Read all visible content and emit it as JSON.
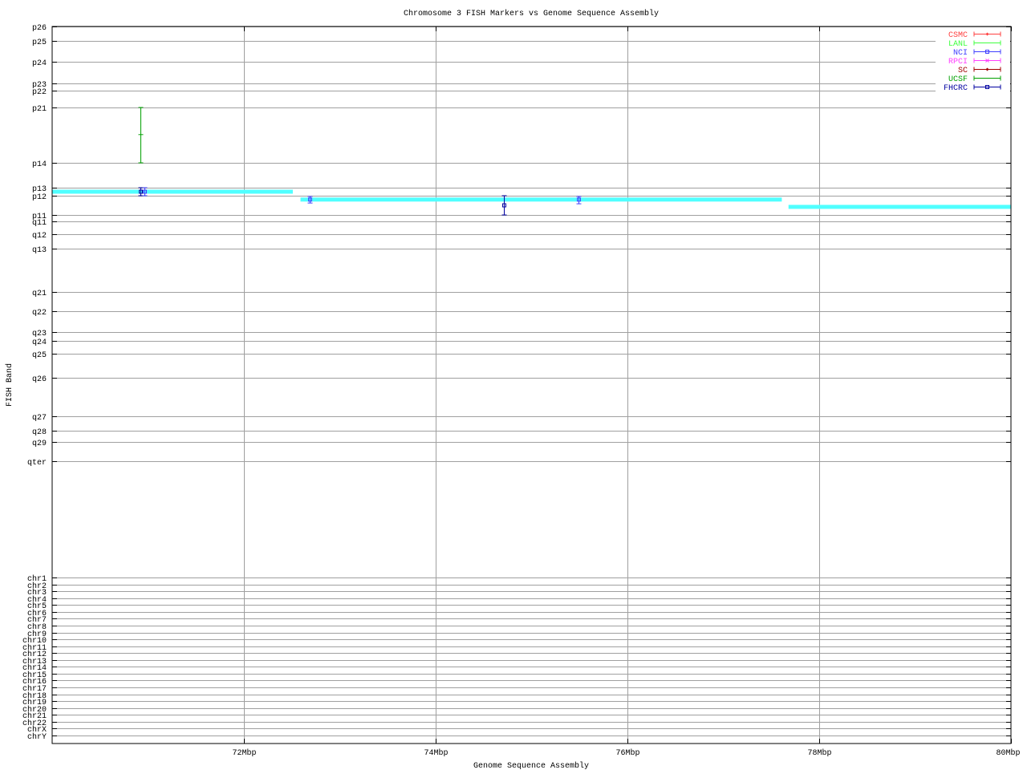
{
  "chart_data": {
    "type": "scatter",
    "title": "Chromosome 3 FISH Markers vs Genome Sequence Assembly",
    "xlabel": "Genome Sequence Assembly",
    "ylabel": "FISH Band",
    "xlim": [
      70,
      80
    ],
    "x_unit": "Mbp",
    "x_ticks": [
      {
        "value": 72,
        "label": "72Mbp"
      },
      {
        "value": 74,
        "label": "74Mbp"
      },
      {
        "value": 76,
        "label": "76Mbp"
      },
      {
        "value": 78,
        "label": "78Mbp"
      },
      {
        "value": 80,
        "label": "80Mbp"
      }
    ],
    "y_ticks": [
      "p26",
      "p25",
      "p24",
      "p23",
      "p22",
      "p21",
      "p14",
      "p13",
      "p12",
      "p11",
      "q11",
      "q12",
      "q13",
      "q21",
      "q22",
      "q23",
      "q24",
      "q25",
      "q26",
      "q27",
      "q28",
      "q29",
      "qter",
      "chr1",
      "chr2",
      "chr3",
      "chr4",
      "chr5",
      "chr6",
      "chr7",
      "chr8",
      "chr9",
      "chr10",
      "chr11",
      "chr12",
      "chr13",
      "chr14",
      "chr15",
      "chr16",
      "chr17",
      "chr18",
      "chr19",
      "chr20",
      "chr21",
      "chr22",
      "chrX",
      "chrY"
    ],
    "y_scale": "ordinal band index (0 = p26, fractional = between bands)",
    "grid": true,
    "legend_position": "top-right",
    "legend": [
      {
        "name": "CSMC",
        "color": "#ff4040",
        "marker": "diamond"
      },
      {
        "name": "LANL",
        "color": "#40ff40",
        "marker": "plus"
      },
      {
        "name": "NCI",
        "color": "#4040ff",
        "marker": "square"
      },
      {
        "name": "RPCI",
        "color": "#ff40ff",
        "marker": "cross"
      },
      {
        "name": "SC",
        "color": "#a00000",
        "marker": "diamond"
      },
      {
        "name": "UCSF",
        "color": "#00a000",
        "marker": "plus"
      },
      {
        "name": "FHCRC",
        "color": "#0000a0",
        "marker": "square"
      }
    ],
    "assembly_segments": {
      "color": "#50ffff",
      "segments": [
        {
          "x_start": 70.0,
          "x_end": 72.51,
          "y": 7.5
        },
        {
          "x_start": 72.59,
          "x_end": 77.61,
          "y": 8.2
        },
        {
          "x_start": 77.68,
          "x_end": 80.0,
          "y": 8.58
        }
      ]
    },
    "points": [
      {
        "series": "UCSF",
        "x": 70.92,
        "y": 5.49,
        "y_low": 5.0,
        "y_high": 6.0
      },
      {
        "series": "FHCRC",
        "x": 70.92,
        "y": 7.5,
        "y_low": 7.0,
        "y_high": 8.0
      },
      {
        "series": "NCI",
        "x": 70.96,
        "y": 7.5,
        "y_low": 7.0,
        "y_high": 8.0
      },
      {
        "series": "NCI",
        "x": 72.69,
        "y": 8.2,
        "y_low": 8.04,
        "y_high": 8.38
      },
      {
        "series": "FHCRC",
        "x": 74.71,
        "y": 8.5,
        "y_low": 8.0,
        "y_high": 9.0
      },
      {
        "series": "NCI",
        "x": 75.49,
        "y": 8.2,
        "y_low": 8.04,
        "y_high": 8.42
      }
    ]
  }
}
